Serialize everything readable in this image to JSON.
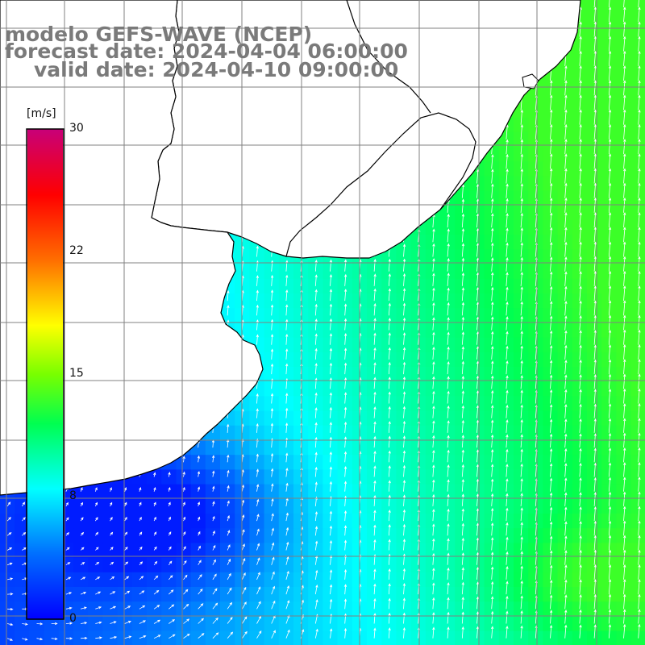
{
  "title": {
    "line1": "modelo GEFS-WAVE (NCEP)",
    "line2": "forecast date: 2024-04-04 06:00:00",
    "line3": "valid date: 2024-04-10 09:00:00"
  },
  "colorbar": {
    "unit": "[m/s]",
    "ticks": [
      {
        "value": 30,
        "label": "30"
      },
      {
        "value": 22,
        "label": "22"
      },
      {
        "value": 15,
        "label": "15"
      },
      {
        "value": 8,
        "label": "8"
      },
      {
        "value": 0,
        "label": "0"
      }
    ],
    "min": 0,
    "max": 30
  },
  "map": {
    "variable": "wind speed and direction",
    "grid_color": "#808080",
    "coastline_color": "#000000",
    "arrow_color": "#ffffff",
    "land_color": "#ffffff"
  }
}
